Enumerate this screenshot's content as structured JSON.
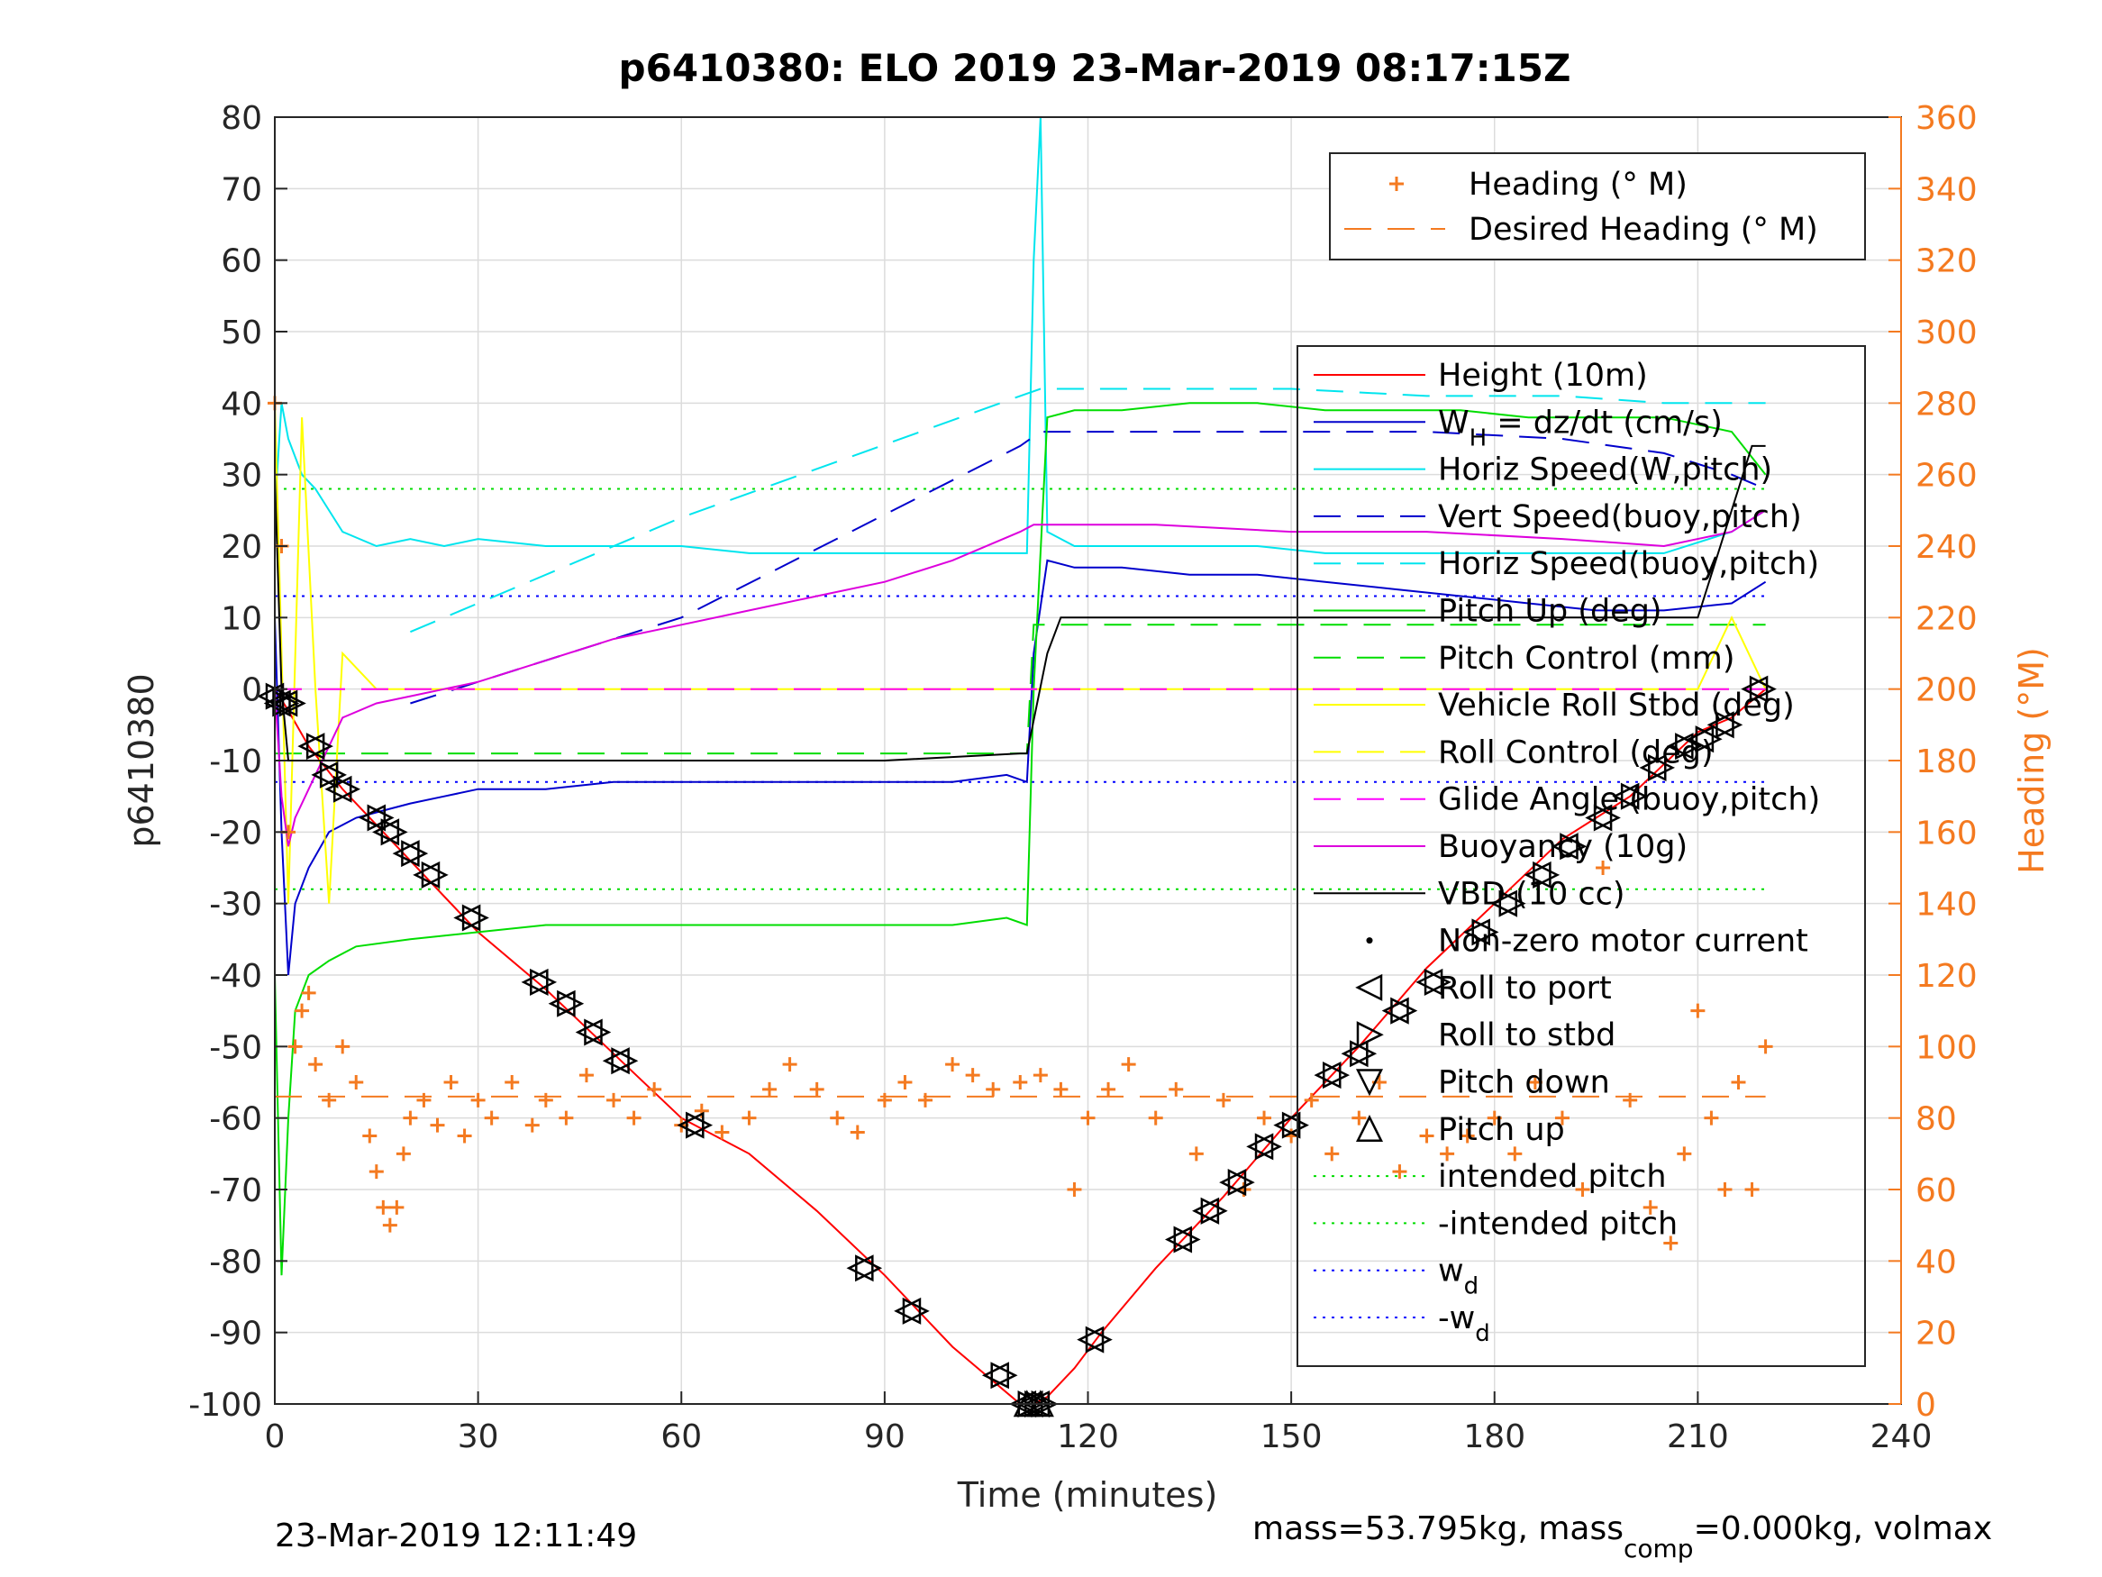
{
  "chart_data": {
    "type": "line",
    "title": "p6410380: ELO 2019 23-Mar-2019 08:17:15Z",
    "xlabel": "Time (minutes)",
    "ylabel_left": "p6410380",
    "ylabel_right": "Heading (°M)",
    "xlim": [
      0,
      240
    ],
    "ylim_left": [
      -100,
      80
    ],
    "ylim_right": [
      0,
      360
    ],
    "xticks": [
      "0",
      "30",
      "60",
      "90",
      "120",
      "150",
      "180",
      "210",
      "240"
    ],
    "yticks_left": [
      "80",
      "70",
      "60",
      "50",
      "40",
      "30",
      "20",
      "10",
      "0",
      "-10",
      "-20",
      "-30",
      "-40",
      "-50",
      "-60",
      "-70",
      "-80",
      "-90",
      "-100"
    ],
    "yticks_right": [
      "360",
      "340",
      "320",
      "300",
      "280",
      "260",
      "240",
      "220",
      "200",
      "180",
      "160",
      "140",
      "120",
      "100",
      "80",
      "60",
      "40",
      "20",
      "0"
    ],
    "grid": true,
    "colors": {
      "right_axis": "#f47a20",
      "heading": "#f47a20"
    },
    "legend_right_axis": [
      {
        "label": "Heading (° M)",
        "color": "#f47a20",
        "style": "plus"
      },
      {
        "label": "Desired Heading (° M)",
        "color": "#f47a20",
        "style": "dash"
      }
    ],
    "legend_left_axis": [
      {
        "label": "Height (10m)",
        "color": "#ff0000",
        "style": "solid"
      },
      {
        "label_main": "W",
        "label_sub": "H",
        "label_rest": " = dz/dt (cm/s)",
        "color": "#0000cc",
        "style": "solid"
      },
      {
        "label": "Horiz Speed(W,pitch)",
        "color": "#00e5ee",
        "style": "solid"
      },
      {
        "label": "Vert Speed(buoy,pitch)",
        "color": "#0000cc",
        "style": "dash"
      },
      {
        "label": "Horiz Speed(buoy,pitch)",
        "color": "#00e5ee",
        "style": "dash"
      },
      {
        "label": "Pitch Up (deg)",
        "color": "#00dd00",
        "style": "solid"
      },
      {
        "label": "Pitch Control (mm)",
        "color": "#00dd00",
        "style": "dash"
      },
      {
        "label": "Vehicle Roll Stbd (deg)",
        "color": "#ffff00",
        "style": "solid"
      },
      {
        "label": "Roll Control (deg)",
        "color": "#ffff00",
        "style": "dash"
      },
      {
        "label": "Glide Angle (buoy,pitch)",
        "color": "#ff00ff",
        "style": "dash"
      },
      {
        "label": "Buoyancy (10g)",
        "color": "#dd00dd",
        "style": "solid"
      },
      {
        "label": "VBD (10 cc)",
        "color": "#000000",
        "style": "solid"
      },
      {
        "label": "Non-zero motor current",
        "color": "#000000",
        "style": "dot"
      },
      {
        "label": "Roll to port",
        "color": "#000000",
        "style": "tri-left"
      },
      {
        "label": "Roll to stbd",
        "color": "#000000",
        "style": "tri-right"
      },
      {
        "label": "Pitch down",
        "color": "#000000",
        "style": "tri-down"
      },
      {
        "label": "Pitch up",
        "color": "#000000",
        "style": "tri-up"
      },
      {
        "label": "intended pitch",
        "color": "#00dd00",
        "style": "dotted"
      },
      {
        "label": "-intended pitch",
        "color": "#00dd00",
        "style": "dotted"
      },
      {
        "label_main": "w",
        "label_sub": "d",
        "color": "#0000ff",
        "style": "dotted"
      },
      {
        "label_main": "-w",
        "label_sub": "d",
        "color": "#0000ff",
        "style": "dotted"
      }
    ],
    "series": [
      {
        "name": "Height (10m)",
        "color": "#ff0000",
        "x": [
          0,
          2,
          5,
          10,
          20,
          30,
          40,
          50,
          60,
          70,
          80,
          90,
          100,
          105,
          110,
          112,
          114,
          118,
          122,
          130,
          140,
          150,
          160,
          170,
          180,
          190,
          200,
          210,
          215,
          220
        ],
        "y": [
          0,
          -3,
          -8,
          -14,
          -24,
          -34,
          -42,
          -51,
          -60,
          -65,
          -73,
          -82,
          -92,
          -96,
          -100,
          -100,
          -99,
          -95,
          -90,
          -81,
          -71,
          -60,
          -50,
          -39,
          -30,
          -21,
          -15,
          -6,
          -4,
          0
        ]
      },
      {
        "name": "W = dz/dt (cm/s)",
        "color": "#0000cc",
        "x": [
          0,
          1,
          2,
          3,
          5,
          8,
          12,
          16,
          20,
          25,
          30,
          40,
          50,
          60,
          70,
          80,
          90,
          100,
          108,
          111,
          112,
          114,
          118,
          125,
          135,
          145,
          155,
          165,
          175,
          185,
          195,
          205,
          215,
          220
        ],
        "y": [
          10,
          -20,
          -40,
          -30,
          -25,
          -20,
          -18,
          -17,
          -16,
          -15,
          -14,
          -14,
          -13,
          -13,
          -13,
          -13,
          -13,
          -13,
          -12,
          -13,
          5,
          18,
          17,
          17,
          16,
          16,
          15,
          14,
          13,
          12,
          11,
          11,
          12,
          15
        ]
      },
      {
        "name": "Horiz Speed(W,pitch)",
        "color": "#00e5ee",
        "x": [
          0,
          1,
          2,
          4,
          6,
          10,
          15,
          20,
          25,
          30,
          40,
          50,
          60,
          70,
          80,
          90,
          100,
          108,
          111,
          112,
          113,
          114,
          118,
          125,
          135,
          145,
          155,
          165,
          175,
          185,
          195,
          205,
          215,
          220
        ],
        "y": [
          25,
          40,
          35,
          30,
          28,
          22,
          20,
          21,
          20,
          21,
          20,
          20,
          20,
          19,
          19,
          19,
          19,
          19,
          19,
          60,
          80,
          22,
          20,
          20,
          20,
          20,
          19,
          19,
          19,
          19,
          19,
          19,
          22,
          25
        ]
      },
      {
        "name": "Vert Speed(buoy,pitch)",
        "color": "#0000cc",
        "dash": "30,18",
        "x": [
          20,
          60,
          110,
          113,
          130,
          150,
          170,
          190,
          205,
          215,
          220
        ],
        "y": [
          -2,
          10,
          34,
          36,
          36,
          36,
          36,
          35,
          33,
          30,
          28
        ]
      },
      {
        "name": "Horiz Speed(buoy,pitch)",
        "color": "#00e5ee",
        "dash": "30,18",
        "x": [
          20,
          60,
          110,
          113,
          130,
          150,
          170,
          190,
          205,
          215,
          220
        ],
        "y": [
          8,
          24,
          41,
          42,
          42,
          42,
          41,
          41,
          40,
          40,
          40
        ]
      },
      {
        "name": "Pitch Up (deg)",
        "color": "#00dd00",
        "x": [
          0,
          1,
          2,
          3,
          5,
          8,
          12,
          20,
          30,
          40,
          50,
          60,
          70,
          80,
          90,
          100,
          108,
          111,
          112,
          114,
          118,
          125,
          135,
          145,
          155,
          165,
          175,
          185,
          195,
          205,
          215,
          220
        ],
        "y": [
          -40,
          -82,
          -60,
          -45,
          -40,
          -38,
          -36,
          -35,
          -34,
          -33,
          -33,
          -33,
          -33,
          -33,
          -33,
          -33,
          -32,
          -33,
          0,
          38,
          39,
          39,
          40,
          40,
          39,
          39,
          39,
          38,
          38,
          38,
          36,
          30
        ]
      },
      {
        "name": "Pitch Control (mm)",
        "color": "#00dd00",
        "dash": "30,18",
        "x": [
          0,
          2,
          10,
          30,
          60,
          90,
          110,
          111,
          112,
          120,
          150,
          180,
          210,
          220
        ],
        "y": [
          -9,
          -9,
          -9,
          -9,
          -9,
          -9,
          -9,
          -9,
          9,
          9,
          9,
          9,
          9,
          9
        ]
      },
      {
        "name": "Vehicle Roll Stbd (deg)",
        "color": "#ffff00",
        "x": [
          0,
          2,
          4,
          6,
          8,
          10,
          15,
          20,
          25,
          30,
          35,
          40,
          50,
          60,
          70,
          80,
          90,
          100,
          110,
          112,
          120,
          130,
          140,
          150,
          160,
          170,
          180,
          190,
          200,
          210,
          215,
          220
        ],
        "y": [
          40,
          -30,
          38,
          0,
          -30,
          5,
          0,
          0,
          0,
          0,
          0,
          0,
          0,
          0,
          0,
          0,
          0,
          0,
          0,
          0,
          0,
          0,
          0,
          0,
          0,
          0,
          0,
          0,
          0,
          0,
          10,
          0
        ]
      },
      {
        "name": "Roll Control (deg)",
        "color": "#ffff00",
        "dash": "30,18",
        "x": [
          0,
          220
        ],
        "y": [
          0,
          0
        ]
      },
      {
        "name": "Glide Angle (buoy,pitch)",
        "color": "#ff00ff",
        "dash": "30,18",
        "x": [
          0,
          220
        ],
        "y": [
          0,
          0
        ]
      },
      {
        "name": "Buoyancy (10g)",
        "color": "#dd00dd",
        "x": [
          0,
          1,
          2,
          3,
          5,
          8,
          10,
          15,
          20,
          30,
          40,
          50,
          60,
          70,
          80,
          90,
          100,
          110,
          112,
          130,
          150,
          170,
          190,
          205,
          215,
          220
        ],
        "y": [
          0,
          -15,
          -22,
          -18,
          -14,
          -8,
          -4,
          -2,
          -1,
          1,
          4,
          7,
          9,
          11,
          13,
          15,
          18,
          22,
          23,
          23,
          22,
          22,
          21,
          20,
          22,
          25
        ]
      },
      {
        "name": "VBD (10 cc)",
        "color": "#000000",
        "x": [
          0,
          1,
          2,
          5,
          10,
          30,
          60,
          90,
          110,
          111,
          114,
          116,
          120,
          150,
          180,
          210,
          218,
          220
        ],
        "y": [
          30,
          0,
          -10,
          -10,
          -10,
          -10,
          -10,
          -10,
          -9,
          -9,
          5,
          10,
          10,
          10,
          10,
          10,
          34,
          34
        ]
      },
      {
        "name": "intended pitch",
        "color": "#00dd00",
        "dotted": true,
        "x": [
          0,
          220
        ],
        "y": [
          28,
          28
        ]
      },
      {
        "name": "-intended pitch",
        "color": "#00dd00",
        "dotted": true,
        "x": [
          0,
          220
        ],
        "y": [
          -28,
          -28
        ]
      },
      {
        "name": "w_d",
        "color": "#0000ff",
        "dotted": true,
        "x": [
          0,
          220
        ],
        "y": [
          13,
          13
        ]
      },
      {
        "name": "-w_d",
        "color": "#0000ff",
        "dotted": true,
        "x": [
          0,
          220
        ],
        "y": [
          -13,
          -13
        ]
      }
    ],
    "heading": {
      "name": "Heading (° M)",
      "x": [
        0,
        1,
        2,
        3,
        4,
        5,
        6,
        8,
        10,
        12,
        14,
        15,
        16,
        17,
        18,
        19,
        20,
        22,
        24,
        26,
        28,
        30,
        32,
        35,
        38,
        40,
        43,
        46,
        50,
        53,
        56,
        60,
        63,
        66,
        70,
        73,
        76,
        80,
        83,
        86,
        90,
        93,
        96,
        100,
        103,
        106,
        110,
        113,
        116,
        118,
        120,
        123,
        126,
        130,
        133,
        136,
        140,
        143,
        146,
        150,
        153,
        156,
        160,
        163,
        166,
        170,
        173,
        176,
        180,
        183,
        186,
        190,
        193,
        196,
        200,
        203,
        206,
        208,
        210,
        212,
        214,
        216,
        218,
        220
      ],
      "y": [
        280,
        240,
        160,
        100,
        110,
        115,
        95,
        85,
        100,
        90,
        75,
        65,
        55,
        50,
        55,
        70,
        80,
        85,
        78,
        90,
        75,
        85,
        80,
        90,
        78,
        85,
        80,
        92,
        85,
        80,
        88,
        78,
        82,
        76,
        80,
        88,
        95,
        88,
        80,
        76,
        85,
        90,
        85,
        95,
        92,
        88,
        90,
        92,
        88,
        60,
        80,
        88,
        95,
        80,
        88,
        70,
        85,
        60,
        80,
        75,
        85,
        70,
        80,
        90,
        65,
        75,
        70,
        75,
        80,
        70,
        90,
        80,
        60,
        150,
        85,
        55,
        45,
        70,
        110,
        80,
        60,
        90,
        60,
        100
      ]
    },
    "desired_heading": {
      "name": "Desired Heading (° M)",
      "x": [
        0,
        220
      ],
      "y": [
        86,
        86
      ]
    },
    "markers": {
      "x": [
        0,
        1,
        2,
        6,
        8,
        10,
        15,
        17,
        20,
        23,
        29,
        39,
        43,
        47,
        51,
        62,
        87,
        94,
        107,
        111,
        112,
        113,
        121,
        134,
        138,
        142,
        146,
        150,
        156,
        160,
        166,
        171,
        178,
        182,
        187,
        191,
        196,
        200,
        204,
        208,
        211,
        214,
        219
      ],
      "y": [
        -1,
        -2,
        -2,
        -8,
        -12,
        -14,
        -18,
        -20,
        -23,
        -26,
        -32,
        -41,
        -44,
        -48,
        -52,
        -61,
        -81,
        -87,
        -96,
        -100,
        -100,
        -100,
        -91,
        -77,
        -73,
        -69,
        -64,
        -61,
        -54,
        -51,
        -45,
        -41,
        -34,
        -30,
        -26,
        -22,
        -18,
        -15,
        -11,
        -8,
        -7,
        -5,
        0
      ]
    },
    "footer_left": "23-Mar-2019 12:11:49",
    "footer_right": {
      "prefix": "mass=53.795kg, mass",
      "sub": "comp",
      "suffix": "=0.000kg, volmax"
    }
  }
}
